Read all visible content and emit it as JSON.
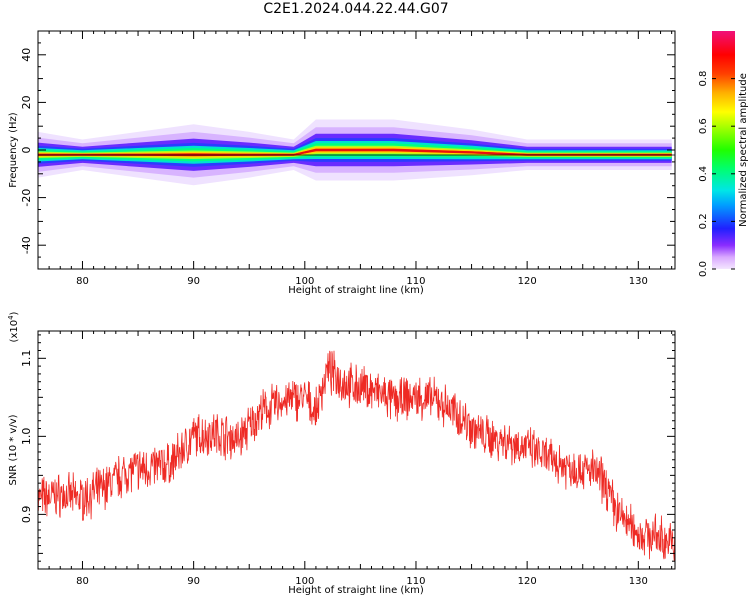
{
  "title": "C2E1.2024.044.22.44.G07",
  "chart_data": [
    {
      "type": "heatmap",
      "xlabel": "Height of straight line (km)",
      "ylabel": "Frequency (Hz)",
      "xlim": [
        76,
        133.3
      ],
      "ylim": [
        -50,
        50
      ],
      "xticks": [
        80,
        90,
        100,
        110,
        120,
        130
      ],
      "yticks": [
        -40,
        -20,
        0,
        20,
        40
      ],
      "colorbar": {
        "label": "Normalized spectral amplitude",
        "range": [
          0,
          1
        ],
        "ticks": [
          "0.0",
          "0.2",
          "0.4",
          "0.6",
          "0.8"
        ],
        "colormap": "hsv"
      },
      "ridge": {
        "description_points": [
          {
            "x": 76,
            "center_hz": -2,
            "half_width_hz": 3
          },
          {
            "x": 80,
            "center_hz": -2,
            "half_width_hz": 2
          },
          {
            "x": 85,
            "center_hz": -2,
            "half_width_hz": 3
          },
          {
            "x": 90,
            "center_hz": -2,
            "half_width_hz": 4
          },
          {
            "x": 95,
            "center_hz": -2,
            "half_width_hz": 3
          },
          {
            "x": 99,
            "center_hz": -2,
            "half_width_hz": 2
          },
          {
            "x": 101,
            "center_hz": 0,
            "half_width_hz": 4
          },
          {
            "x": 108,
            "center_hz": 0,
            "half_width_hz": 4
          },
          {
            "x": 115,
            "center_hz": -1,
            "half_width_hz": 3
          },
          {
            "x": 120,
            "center_hz": -2,
            "half_width_hz": 2
          },
          {
            "x": 133,
            "center_hz": -2,
            "half_width_hz": 2
          }
        ]
      }
    },
    {
      "type": "line",
      "xlabel": "Height of straight line (km)",
      "ylabel": "SNR (10 * v/v)",
      "yscale_label": "(x10",
      "yscale_exp": "4",
      "yscale_close": ")",
      "xlim": [
        76,
        133.3
      ],
      "ylim": [
        0.83,
        1.135
      ],
      "xticks": [
        80,
        90,
        100,
        110,
        120,
        130
      ],
      "yticks": [
        0.9,
        1.0,
        1.1
      ],
      "color": "#ee2a24",
      "series": [
        {
          "x": [
            76,
            78,
            80,
            82,
            84,
            86,
            88,
            90,
            92,
            94,
            96,
            98,
            100,
            101,
            102,
            104,
            106,
            108,
            110,
            112,
            114,
            116,
            118,
            120,
            122,
            124,
            126,
            127,
            128,
            130,
            132,
            133.3
          ],
          "values": [
            0.92,
            0.925,
            0.92,
            0.935,
            0.955,
            0.96,
            0.965,
            1.0,
            1.005,
            0.995,
            1.03,
            1.045,
            1.05,
            1.03,
            1.085,
            1.065,
            1.06,
            1.045,
            1.05,
            1.045,
            1.025,
            1.0,
            0.995,
            0.985,
            0.97,
            0.96,
            0.955,
            0.94,
            0.905,
            0.875,
            0.87,
            0.86
          ]
        }
      ]
    }
  ]
}
